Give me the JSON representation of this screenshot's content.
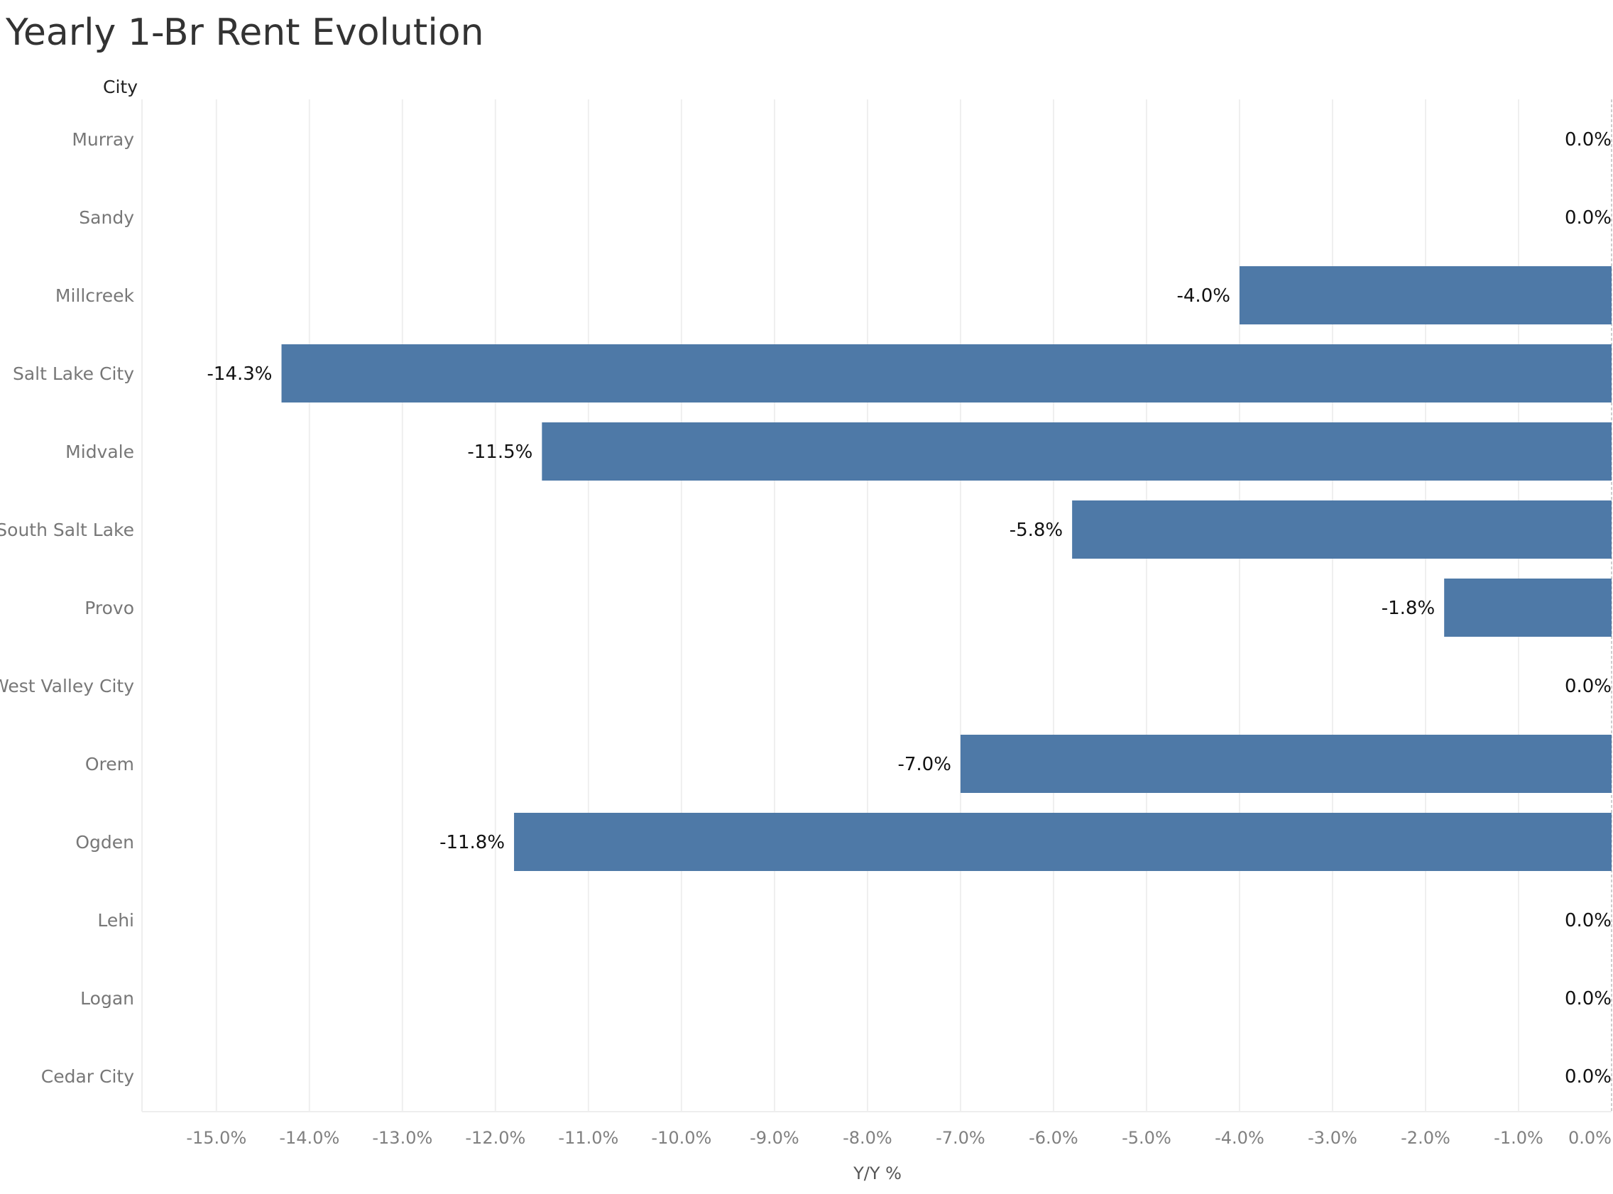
{
  "chart_data": {
    "type": "bar",
    "orientation": "horizontal",
    "title": "Yearly 1-Br Rent Evolution",
    "row_header": "City",
    "xlabel": "Y/Y %",
    "categories": [
      "Murray",
      "Sandy",
      "Millcreek",
      "Salt Lake City",
      "Midvale",
      "South Salt Lake",
      "Provo",
      "West Valley City",
      "Orem",
      "Ogden",
      "Lehi",
      "Logan",
      "Cedar City"
    ],
    "values": [
      0.0,
      0.0,
      -4.0,
      -14.3,
      -11.5,
      -5.8,
      -1.8,
      0.0,
      -7.0,
      -11.8,
      0.0,
      0.0,
      0.0
    ],
    "data_labels": [
      "0.0%",
      "0.0%",
      "-4.0%",
      "-14.3%",
      "-11.5%",
      "-5.8%",
      "-1.8%",
      "0.0%",
      "-7.0%",
      "-11.8%",
      "0.0%",
      "0.0%",
      "0.0%"
    ],
    "x_ticks": [
      -15,
      -14,
      -13,
      -12,
      -11,
      -10,
      -9,
      -8,
      -7,
      -6,
      -5,
      -4,
      -3,
      -2,
      -1,
      0
    ],
    "x_tick_labels": [
      "-15.0%",
      "-14.0%",
      "-13.0%",
      "-12.0%",
      "-11.0%",
      "-10.0%",
      "-9.0%",
      "-8.0%",
      "-7.0%",
      "-6.0%",
      "-5.0%",
      "-4.0%",
      "-3.0%",
      "-2.0%",
      "-1.0%",
      "0.0%"
    ],
    "xlim": [
      -15.8,
      0.0
    ],
    "grid": true,
    "bar_color": "#4e79a7",
    "legend": "none"
  }
}
